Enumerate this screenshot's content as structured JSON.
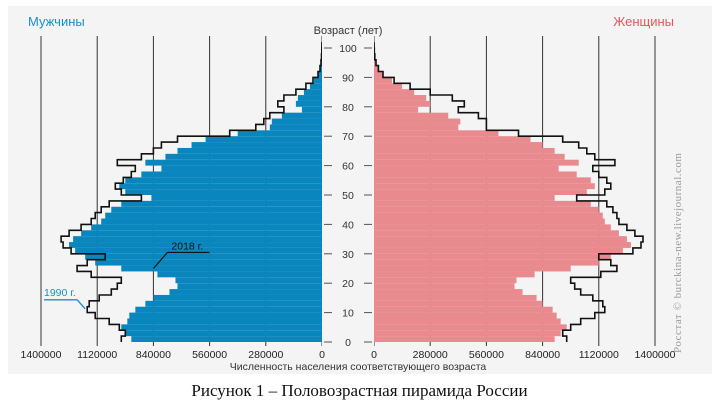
{
  "chart_data": {
    "type": "bar",
    "orientation": "horizontal-population-pyramid",
    "left_title": "Мужчины",
    "right_title": "Женщины",
    "axis_title": "Возраст (лет)",
    "xlabel": "Численность населения соответствующего возраста",
    "xlim": [
      0,
      1400000
    ],
    "ylim": [
      0,
      100
    ],
    "x_ticks": [
      1400000,
      1120000,
      840000,
      560000,
      280000,
      0
    ],
    "x_tick_labels_left": [
      "1400000",
      "1120000",
      "840000",
      "560000",
      "280000",
      "0"
    ],
    "x_tick_labels_right": [
      "0",
      "280000",
      "560000",
      "840000",
      "1120000",
      "1400000"
    ],
    "y_ticks": [
      0,
      10,
      20,
      30,
      40,
      50,
      60,
      70,
      80,
      90,
      100
    ],
    "grid": true,
    "series": [
      {
        "name": "2018 г.",
        "role": "filled bars",
        "ages": [
          0,
          2,
          4,
          6,
          8,
          10,
          12,
          14,
          16,
          18,
          20,
          22,
          24,
          26,
          28,
          30,
          32,
          34,
          36,
          38,
          40,
          42,
          44,
          46,
          48,
          50,
          52,
          54,
          56,
          58,
          60,
          62,
          64,
          66,
          68,
          70,
          72,
          74,
          76,
          78,
          80,
          82,
          84,
          86,
          88,
          90,
          92,
          94,
          96,
          98,
          100
        ],
        "male": [
          950000,
          980000,
          1000000,
          970000,
          960000,
          930000,
          880000,
          840000,
          760000,
          720000,
          730000,
          820000,
          1000000,
          1130000,
          1180000,
          1230000,
          1260000,
          1240000,
          1200000,
          1150000,
          1100000,
          1080000,
          1050000,
          1000000,
          850000,
          980000,
          1010000,
          980000,
          900000,
          800000,
          880000,
          780000,
          720000,
          650000,
          580000,
          420000,
          260000,
          250000,
          200000,
          100000,
          130000,
          120000,
          90000,
          60000,
          40000,
          20000,
          12000,
          6000,
          3000,
          1500,
          600
        ],
        "female": [
          900000,
          930000,
          960000,
          930000,
          910000,
          890000,
          840000,
          810000,
          740000,
          700000,
          710000,
          800000,
          980000,
          1120000,
          1180000,
          1240000,
          1280000,
          1260000,
          1220000,
          1180000,
          1150000,
          1140000,
          1120000,
          1080000,
          900000,
          1060000,
          1100000,
          1080000,
          1010000,
          920000,
          1020000,
          950000,
          900000,
          840000,
          780000,
          620000,
          420000,
          430000,
          370000,
          220000,
          280000,
          260000,
          200000,
          140000,
          90000,
          45000,
          25000,
          12000,
          5000,
          2000,
          800
        ]
      },
      {
        "name": "1990 г.",
        "role": "outline",
        "ages": [
          0,
          2,
          4,
          6,
          8,
          10,
          12,
          14,
          16,
          18,
          20,
          22,
          24,
          26,
          28,
          30,
          32,
          34,
          36,
          38,
          40,
          42,
          44,
          46,
          48,
          50,
          52,
          54,
          56,
          58,
          60,
          62,
          64,
          66,
          68,
          70,
          72,
          74,
          76,
          78,
          80,
          82,
          84,
          86,
          88,
          90,
          92,
          94,
          96,
          98,
          100
        ],
        "male": [
          1000000,
          980000,
          1010000,
          1060000,
          1130000,
          1170000,
          1160000,
          1110000,
          1050000,
          1020000,
          1000000,
          1150000,
          1220000,
          1170000,
          1080000,
          1250000,
          1290000,
          1300000,
          1260000,
          1200000,
          1150000,
          1130000,
          1100000,
          1060000,
          900000,
          1000000,
          1030000,
          990000,
          950000,
          930000,
          1020000,
          900000,
          840000,
          800000,
          720000,
          460000,
          330000,
          290000,
          260000,
          190000,
          220000,
          190000,
          130000,
          80000,
          45000,
          20000,
          10000,
          5000,
          2500,
          1200,
          500
        ],
        "female": [
          960000,
          940000,
          980000,
          1030000,
          1100000,
          1150000,
          1140000,
          1090000,
          1030000,
          1000000,
          980000,
          1130000,
          1210000,
          1180000,
          1120000,
          1290000,
          1330000,
          1340000,
          1300000,
          1260000,
          1220000,
          1210000,
          1190000,
          1160000,
          1010000,
          1150000,
          1180000,
          1160000,
          1120000,
          1090000,
          1200000,
          1100000,
          1060000,
          1020000,
          940000,
          720000,
          560000,
          560000,
          520000,
          420000,
          450000,
          390000,
          280000,
          180000,
          100000,
          45000,
          22000,
          10000,
          4000,
          1500,
          500
        ]
      }
    ],
    "annotations": [
      {
        "text": "2018 г.",
        "age": 25,
        "value": 840000,
        "side": "male"
      },
      {
        "text": "1990 г.",
        "age": 14,
        "value": 1180000,
        "side": "male"
      }
    ],
    "colors": {
      "male_fill": "#0a86bf",
      "female_fill": "#e88a8e",
      "outline": "#111111",
      "male_title": "#1a8fc4",
      "female_title": "#e0585c",
      "grid": "#333333"
    }
  },
  "caption": "Рисунок 1 – Половозрастная пирамида России",
  "watermark": "Росстат © burckina-new.livejournal.com"
}
